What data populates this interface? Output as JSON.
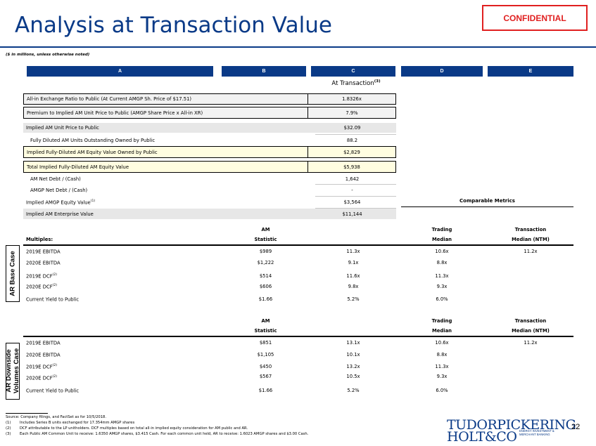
{
  "header": {
    "title": "Analysis at Transaction Value",
    "confidential": "CONFIDENTIAL",
    "units_note": "($ in millions, unless otherwise noted)"
  },
  "column_headers": [
    "A",
    "B",
    "C",
    "D",
    "E"
  ],
  "at_transaction": {
    "label": "At Transaction",
    "note": "(3)"
  },
  "summary_rows": [
    {
      "label": "All-in Exchange Ratio to Public (At Current AMGP Sh. Price of $17.51)",
      "value": "1.8326x"
    },
    {
      "label": "Premium to Implied AM Unit Price to Public (AMGP Share Price x All-in XR)",
      "value": "7.9%"
    },
    {
      "label": "Implied AM Unit Price to Public",
      "value": "$32.09"
    },
    {
      "label": "Fully Diluted AM Units Outstanding Owned by Public",
      "value": "88.2"
    },
    {
      "label": "Implied Fully-Diluted AM Equity Value Owned by Public",
      "value": "$2,829"
    },
    {
      "label": "Total Implied Fully-Diluted AM Equity Value",
      "value": "$5,938"
    },
    {
      "label": "AM Net Debt / (Cash)",
      "value": "1,642"
    },
    {
      "label": "AMGP Net Debt / (Cash)",
      "value": "-"
    },
    {
      "label": "Implied AMGP Equity Value",
      "note": "(1)",
      "value": "$3,564"
    },
    {
      "label": "Implied AM Enterprise Value",
      "value": "$11,144"
    }
  ],
  "comparable_metrics": "Comparable Metrics",
  "base_case": {
    "side_label": "AR Base Case",
    "headers": {
      "multiples": "Multiples:",
      "am_top": "AM",
      "am_bottom": "Statistic",
      "trading_top": "Trading",
      "trading_bottom": "Median",
      "transaction_top": "Transaction",
      "transaction_bottom": "Median (NTM)"
    },
    "rows": [
      {
        "label": "2019E EBITDA",
        "note": "",
        "stat": "$989",
        "multiple": "11.3x",
        "trading": "10.6x",
        "transaction": "11.2x"
      },
      {
        "label": "2020E EBITDA",
        "note": "",
        "stat": "$1,222",
        "multiple": "9.1x",
        "trading": "8.8x",
        "transaction": ""
      },
      {
        "label": "2019E DCF",
        "note": "(2)",
        "stat": "$514",
        "multiple": "11.6x",
        "trading": "11.3x",
        "transaction": ""
      },
      {
        "label": "2020E DCF",
        "note": "(2)",
        "stat": "$606",
        "multiple": "9.8x",
        "trading": "9.3x",
        "transaction": ""
      },
      {
        "label": "Current Yield to Public",
        "note": "",
        "stat": "$1.66",
        "multiple": "5.2%",
        "trading": "6.0%",
        "transaction": ""
      }
    ]
  },
  "downside_case": {
    "side_label_1": "AR Downside",
    "side_label_2": "Volumes Case",
    "headers": {
      "am_top": "AM",
      "am_bottom": "Statistic",
      "trading_top": "Trading",
      "trading_bottom": "Median",
      "transaction_top": "Transaction",
      "transaction_bottom": "Median (NTM)"
    },
    "rows": [
      {
        "label": "2019E EBITDA",
        "note": "",
        "stat": "$851",
        "multiple": "13.1x",
        "trading": "10.6x",
        "transaction": "11.2x"
      },
      {
        "label": "2020E EBITDA",
        "note": "",
        "stat": "$1,105",
        "multiple": "10.1x",
        "trading": "8.8x",
        "transaction": ""
      },
      {
        "label": "2019E DCF",
        "note": "(2)",
        "stat": "$450",
        "multiple": "13.2x",
        "trading": "11.3x",
        "transaction": ""
      },
      {
        "label": "2020E DCF",
        "note": "(2)",
        "stat": "$567",
        "multiple": "10.5x",
        "trading": "9.3x",
        "transaction": ""
      },
      {
        "label": "Current Yield to Public",
        "note": "",
        "stat": "$1.66",
        "multiple": "5.2%",
        "trading": "6.0%",
        "transaction": ""
      }
    ]
  },
  "footnotes": {
    "source": "Source: Company filings, and FactSet as for 10/5/2018.",
    "notes": [
      {
        "num": "(1)",
        "text": "Includes Series B units exchanged for 17.354mm AMGP shares"
      },
      {
        "num": "(2)",
        "text": "DCF attributable to the LP unitholders. DCF multiples based on total all-in implied equity consideration for AM public and AR."
      },
      {
        "num": "(3)",
        "text": "Each Public AM Common Unit to receive: 1.6350 AMGP shares, $3.415 Cash. For each common unit held, AR to receive: 1.6023 AMGP shares and $3.00 Cash."
      }
    ]
  },
  "logo": {
    "line1": "TUDORPICKERING",
    "line2": "HOLT&CO",
    "tag1": "ENERGY INVESTMENT &",
    "tag2": "MERCHANT BANKING"
  },
  "page_number": "22",
  "colors": {
    "navy": "#0a3a87",
    "confidential": "#e02020"
  }
}
